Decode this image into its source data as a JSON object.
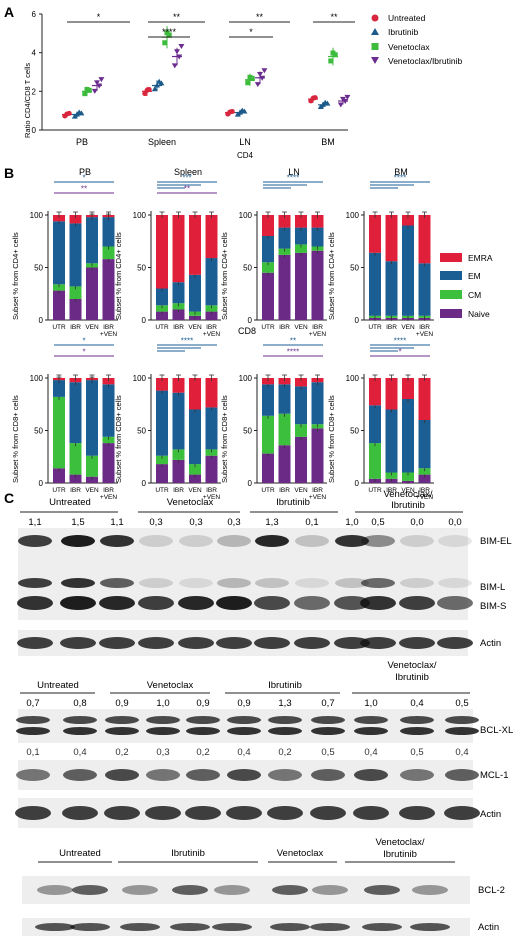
{
  "panel_letters": {
    "a": "A",
    "b": "B",
    "c": "C"
  },
  "colors": {
    "untreated": "#d7263d",
    "ibrutinib": "#1c5a8a",
    "venetoclax": "#3cbb3c",
    "combo": "#6b2c8f",
    "emra": "#e0203a",
    "em": "#1b5e94",
    "cm": "#3cbf3c",
    "naive": "#6a2a86"
  },
  "panel_a": {
    "y_label": "Ratio CD4/CD8 T cells",
    "x_label": "CD4",
    "groups": [
      "PB",
      "Spleen",
      "LN",
      "BM"
    ],
    "legend": [
      "Untreated",
      "Ibrutinib",
      "Venetoclax",
      "Venetoclax/Ibrutinib"
    ],
    "sig": [
      "*",
      "**",
      "****",
      "**",
      "*",
      "**"
    ]
  },
  "panel_b": {
    "row_labels": {
      "cd8": "CD8"
    },
    "ylabel_cd4": "Subset % from CD4+ cells",
    "ylabel_cd8": "Subset % from CD8+ cells",
    "x_ticks": [
      "UTR",
      "IBR",
      "VEN",
      "IBR",
      "+VEN"
    ],
    "titles": [
      "PB",
      "Spleen",
      "LN",
      "BM"
    ],
    "legend": [
      "EMRA",
      "EM",
      "CM",
      "Naive"
    ],
    "sig_cd4": [
      [
        "*",
        "**"
      ],
      [
        "***",
        "**"
      ],
      [
        "****"
      ],
      [
        "****"
      ]
    ],
    "sig_cd8": [
      [
        "*",
        "*"
      ],
      [
        "****"
      ],
      [
        "**",
        "****"
      ],
      [
        "****",
        "*"
      ]
    ]
  },
  "panel_c": {
    "blot1": {
      "groups": [
        "Untreated",
        "Venetoclax",
        "Ibrutinib",
        "Venetoclax/",
        "Ibrutinib"
      ],
      "values": [
        "1,1",
        "1,5",
        "1,1",
        "0,3",
        "0,3",
        "0,3",
        "1,3",
        "0,1",
        "1,0",
        "0,5",
        "0,0",
        "0,0"
      ],
      "labels": [
        "BIM-EL",
        "BIM-L",
        "BIM-S",
        "Actin"
      ]
    },
    "blot2": {
      "groups": [
        "Untreated",
        "Venetoclax",
        "Ibrutinib",
        "Venetoclax/",
        "Ibrutinib"
      ],
      "values_bclxl": [
        "0,7",
        "0,8",
        "0,9",
        "1,0",
        "0,9",
        "0,9",
        "1,3",
        "0,7",
        "1,0",
        "0,4",
        "0,5"
      ],
      "values_mcl1": [
        "0,1",
        "0,4",
        "0,2",
        "0,3",
        "0,2",
        "0,4",
        "0,2",
        "0,5",
        "0,4",
        "0,5",
        "0,4"
      ],
      "labels": [
        "BCL-XL",
        "MCL-1",
        "Actin"
      ]
    },
    "blot3": {
      "groups": [
        "Untreated",
        "Ibrutinib",
        "Venetoclax",
        "Venetoclax/",
        "Ibrutinib"
      ],
      "labels": [
        "BCL-2",
        "Actin"
      ]
    }
  },
  "chart_data": [
    {
      "type": "scatter",
      "title": "",
      "xlabel": "CD4",
      "ylabel": "Ratio CD4/CD8 T cells",
      "categories": [
        "PB",
        "Spleen",
        "LN",
        "BM"
      ],
      "ylim": [
        0,
        6
      ],
      "series": [
        {
          "name": "Untreated",
          "means": [
            0.8,
            2.0,
            0.9,
            1.6
          ]
        },
        {
          "name": "Ibrutinib",
          "means": [
            0.8,
            2.3,
            0.9,
            1.3
          ]
        },
        {
          "name": "Venetoclax",
          "means": [
            2.0,
            4.8,
            2.6,
            3.8
          ]
        },
        {
          "name": "Venetoclax/Ibrutinib",
          "means": [
            2.3,
            3.8,
            2.7,
            1.5
          ]
        }
      ]
    },
    {
      "type": "bar",
      "stacked": true,
      "title": "PB",
      "ylabel": "Subset % from CD4+ cells",
      "categories": [
        "UTR",
        "IBR",
        "VEN",
        "IBR +VEN"
      ],
      "ylim": [
        0,
        100
      ],
      "series": [
        {
          "name": "Naive",
          "values": [
            28,
            20,
            50,
            58
          ]
        },
        {
          "name": "CM",
          "values": [
            6,
            12,
            4,
            12
          ]
        },
        {
          "name": "EM",
          "values": [
            60,
            60,
            44,
            28
          ]
        },
        {
          "name": "EMRA",
          "values": [
            6,
            8,
            2,
            2
          ]
        }
      ]
    },
    {
      "type": "bar",
      "stacked": true,
      "title": "Spleen",
      "ylabel": "Subset % from CD4+ cells",
      "categories": [
        "UTR",
        "IBR",
        "VEN",
        "IBR +VEN"
      ],
      "ylim": [
        0,
        100
      ],
      "series": [
        {
          "name": "Naive",
          "values": [
            8,
            10,
            4,
            8
          ]
        },
        {
          "name": "CM",
          "values": [
            6,
            6,
            4,
            6
          ]
        },
        {
          "name": "EM",
          "values": [
            16,
            20,
            35,
            45
          ]
        },
        {
          "name": "EMRA",
          "values": [
            70,
            64,
            57,
            41
          ]
        }
      ]
    },
    {
      "type": "bar",
      "stacked": true,
      "title": "LN",
      "ylabel": "Subset % from CD4+ cells",
      "categories": [
        "UTR",
        "IBR",
        "VEN",
        "IBR +VEN"
      ],
      "ylim": [
        0,
        100
      ],
      "series": [
        {
          "name": "Naive",
          "values": [
            45,
            62,
            64,
            66
          ]
        },
        {
          "name": "CM",
          "values": [
            10,
            6,
            8,
            4
          ]
        },
        {
          "name": "EM",
          "values": [
            25,
            20,
            16,
            18
          ]
        },
        {
          "name": "EMRA",
          "values": [
            20,
            12,
            12,
            12
          ]
        }
      ]
    },
    {
      "type": "bar",
      "stacked": true,
      "title": "BM",
      "ylabel": "Subset % from CD4+ cells",
      "categories": [
        "UTR",
        "IBR",
        "VEN",
        "IBR +VEN"
      ],
      "ylim": [
        0,
        100
      ],
      "series": [
        {
          "name": "Naive",
          "values": [
            2,
            2,
            2,
            2
          ]
        },
        {
          "name": "CM",
          "values": [
            2,
            2,
            2,
            2
          ]
        },
        {
          "name": "EM",
          "values": [
            60,
            52,
            86,
            50
          ]
        },
        {
          "name": "EMRA",
          "values": [
            36,
            44,
            10,
            46
          ]
        }
      ]
    },
    {
      "type": "bar",
      "stacked": true,
      "title": "PB",
      "ylabel": "Subset % from CD8+ cells",
      "categories": [
        "UTR",
        "IBR",
        "VEN",
        "IBR +VEN"
      ],
      "ylim": [
        0,
        100
      ],
      "series": [
        {
          "name": "Naive",
          "values": [
            14,
            8,
            6,
            38
          ]
        },
        {
          "name": "CM",
          "values": [
            68,
            30,
            20,
            6
          ]
        },
        {
          "name": "EM",
          "values": [
            16,
            58,
            72,
            50
          ]
        },
        {
          "name": "EMRA",
          "values": [
            2,
            4,
            2,
            6
          ]
        }
      ]
    },
    {
      "type": "bar",
      "stacked": true,
      "title": "Spleen",
      "ylabel": "Subset % from CD8+ cells",
      "categories": [
        "UTR",
        "IBR",
        "VEN",
        "IBR +VEN"
      ],
      "ylim": [
        0,
        100
      ],
      "series": [
        {
          "name": "Naive",
          "values": [
            18,
            22,
            8,
            26
          ]
        },
        {
          "name": "CM",
          "values": [
            8,
            10,
            10,
            6
          ]
        },
        {
          "name": "EM",
          "values": [
            62,
            54,
            52,
            40
          ]
        },
        {
          "name": "EMRA",
          "values": [
            12,
            14,
            30,
            28
          ]
        }
      ]
    },
    {
      "type": "bar",
      "stacked": true,
      "title": "LN",
      "ylabel": "Subset % from CD8+ cells",
      "categories": [
        "UTR",
        "IBR",
        "VEN",
        "IBR +VEN"
      ],
      "ylim": [
        0,
        100
      ],
      "series": [
        {
          "name": "Naive",
          "values": [
            28,
            36,
            44,
            52
          ]
        },
        {
          "name": "CM",
          "values": [
            36,
            30,
            12,
            4
          ]
        },
        {
          "name": "EM",
          "values": [
            30,
            28,
            36,
            40
          ]
        },
        {
          "name": "EMRA",
          "values": [
            6,
            6,
            8,
            4
          ]
        }
      ]
    },
    {
      "type": "bar",
      "stacked": true,
      "title": "BM",
      "ylabel": "Subset % from CD8+ cells",
      "categories": [
        "UTR",
        "IBR",
        "VEN",
        "IBR +VEN"
      ],
      "ylim": [
        0,
        100
      ],
      "series": [
        {
          "name": "Naive",
          "values": [
            4,
            4,
            2,
            8
          ]
        },
        {
          "name": "CM",
          "values": [
            34,
            6,
            8,
            6
          ]
        },
        {
          "name": "EM",
          "values": [
            36,
            60,
            70,
            46
          ]
        },
        {
          "name": "EMRA",
          "values": [
            26,
            30,
            20,
            40
          ]
        }
      ]
    }
  ]
}
